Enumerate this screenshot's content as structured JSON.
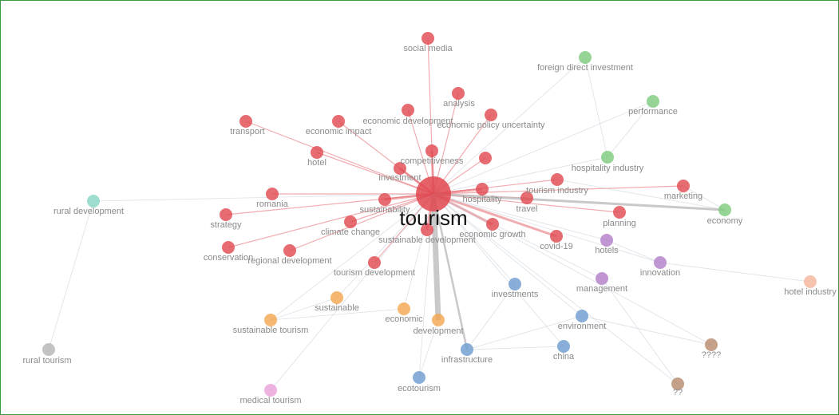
{
  "nodes": [
    {
      "label": "tourism",
      "color": "#e0474f"
    },
    {
      "label": "social media",
      "color": "#e0474f"
    },
    {
      "label": "analysis",
      "color": "#e0474f"
    },
    {
      "label": "economic development",
      "color": "#e0474f"
    },
    {
      "label": "economic policy uncertainty",
      "color": "#e0474f"
    },
    {
      "label": "transport",
      "color": "#e0474f"
    },
    {
      "label": "economic impact",
      "color": "#e0474f"
    },
    {
      "label": "hotel",
      "color": "#e0474f"
    },
    {
      "label": "competitiveness",
      "color": "#e0474f"
    },
    {
      "label": "investment",
      "color": "#e0474f"
    },
    {
      "label": "hospitality",
      "color": "#e0474f"
    },
    {
      "label": "tourism industry",
      "color": "#e0474f"
    },
    {
      "label": "travel",
      "color": "#e0474f"
    },
    {
      "label": "marketing",
      "color": "#e0474f"
    },
    {
      "label": "planning",
      "color": "#e0474f"
    },
    {
      "label": "romania",
      "color": "#e0474f"
    },
    {
      "label": "sustainability",
      "color": "#e0474f"
    },
    {
      "label": "climate change",
      "color": "#e0474f"
    },
    {
      "label": "strategy",
      "color": "#e0474f"
    },
    {
      "label": "conservation",
      "color": "#e0474f"
    },
    {
      "label": "regional development",
      "color": "#e0474f"
    },
    {
      "label": "tourism development",
      "color": "#e0474f"
    },
    {
      "label": "sustainable development",
      "color": "#e0474f"
    },
    {
      "label": "economic growth",
      "color": "#e0474f"
    },
    {
      "label": "covid-19",
      "color": "#e0474f"
    },
    {
      "label": null,
      "color": "#e0474f"
    },
    {
      "label": "foreign direct investment",
      "color": "#7ccb7c"
    },
    {
      "label": "performance",
      "color": "#7ccb7c"
    },
    {
      "label": "hospitality industry",
      "color": "#7ccb7c"
    },
    {
      "label": "economy",
      "color": "#7ccb7c"
    },
    {
      "label": "rural development",
      "color": "#86d4c4"
    },
    {
      "label": "rural tourism",
      "color": "#b4b4b4"
    },
    {
      "label": "hotels",
      "color": "#b07dc8"
    },
    {
      "label": "innovation",
      "color": "#b07dc8"
    },
    {
      "label": "management",
      "color": "#b07dc8"
    },
    {
      "label": "hotel industry",
      "color": "#f6b49a"
    },
    {
      "label": "sustainable",
      "color": "#f4a54c"
    },
    {
      "label": "economic",
      "color": "#f4a54c"
    },
    {
      "label": "development",
      "color": "#f4a54c"
    },
    {
      "label": "sustainable tourism",
      "color": "#f4a54c"
    },
    {
      "label": "investments",
      "color": "#6b9bd0"
    },
    {
      "label": "environment",
      "color": "#6b9bd0"
    },
    {
      "label": "infrastructure",
      "color": "#6b9bd0"
    },
    {
      "label": "china",
      "color": "#6b9bd0"
    },
    {
      "label": "ecotourism",
      "color": "#6b9bd0"
    },
    {
      "label": "medical tourism",
      "color": "#eaa0d8"
    },
    {
      "label": "????",
      "color": "#b58a6a"
    },
    {
      "label": "??",
      "color": "#b58a6a"
    }
  ]
}
